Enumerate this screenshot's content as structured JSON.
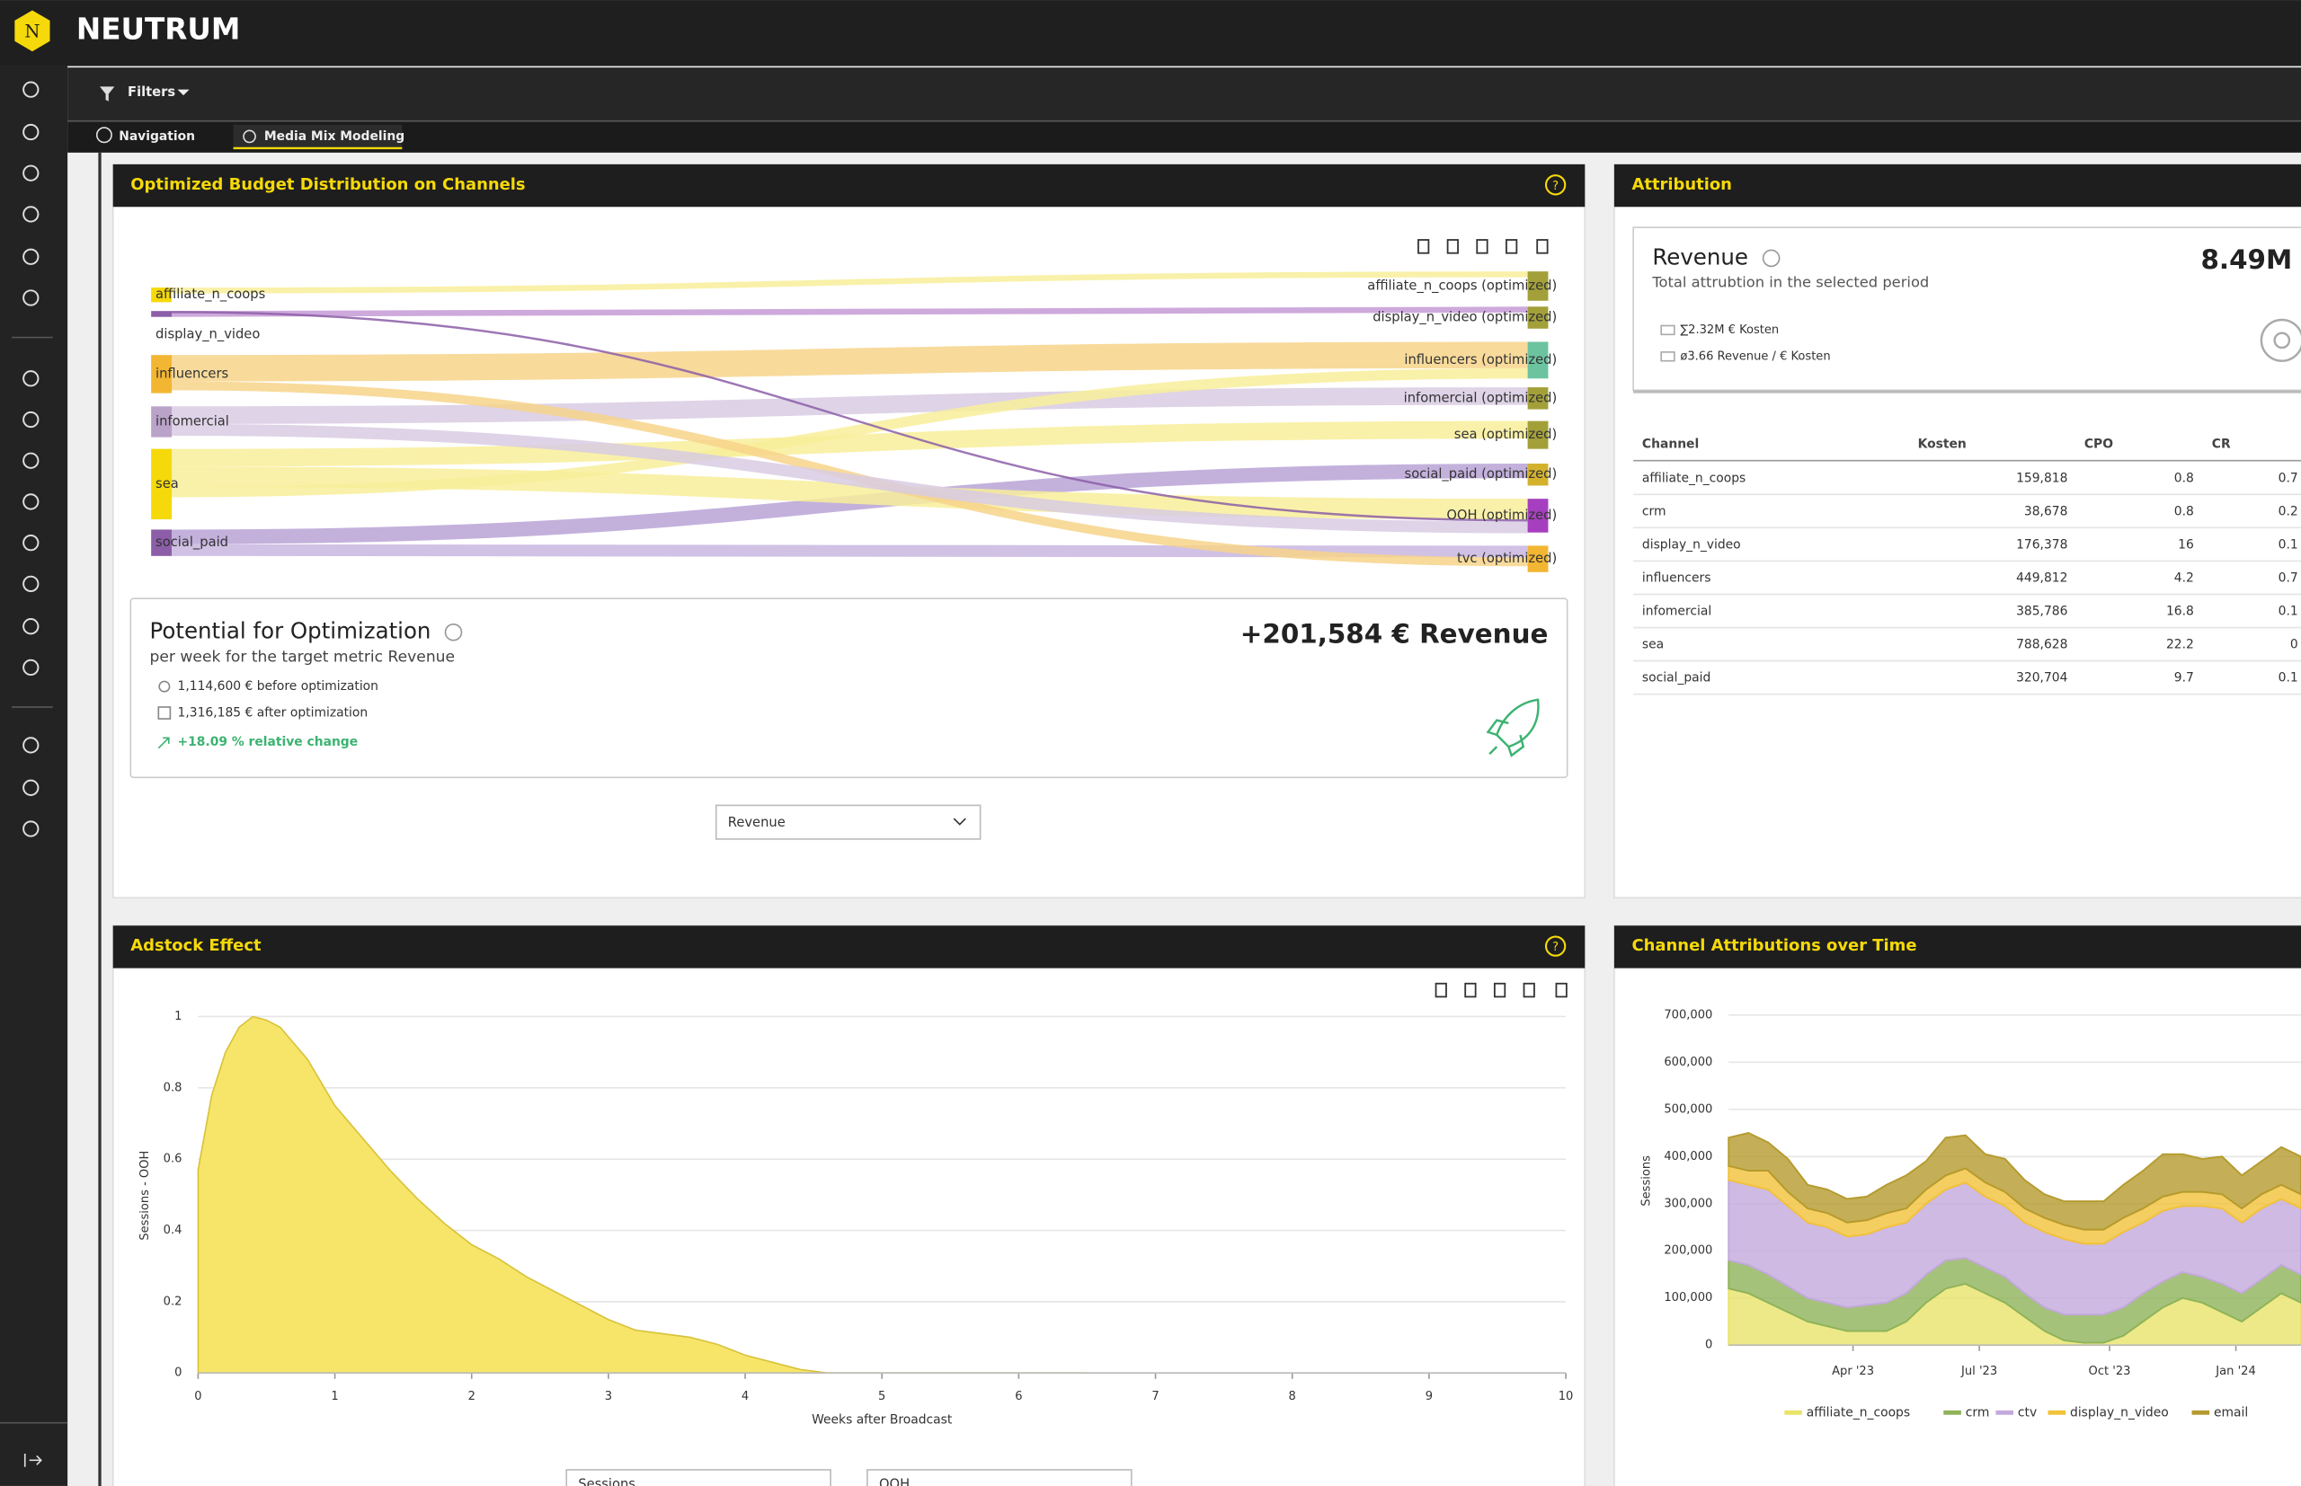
{
  "header": {
    "logo": "N",
    "brand": "NEUTRUM"
  },
  "toolbar": {
    "filters": "Filters"
  },
  "tabs": [
    "Navigation",
    "Media Mix Modeling"
  ],
  "budget_panel": {
    "title": "Optimized Budget Distribution on Channels",
    "sources": [
      "affiliate_n_coops",
      "display_n_video",
      "influencers",
      "infomercial",
      "sea",
      "social_paid"
    ],
    "targets": [
      "affiliate_n_coops (optimized)",
      "display_n_video (optimized)",
      "influencers (optimized)",
      "infomercial (optimized)",
      "sea (optimized)",
      "social_paid (optimized)",
      "OOH (optimized)",
      "tvc (optimized)"
    ],
    "potential": {
      "title": "Potential for Optimization",
      "subtitle": "per week for the target metric Revenue",
      "headline": "+201,584 € Revenue",
      "before": "1,114,600 € before optimization",
      "after": "1,316,185 € after optimization",
      "change": "+18.09 % relative change"
    },
    "select": "Revenue"
  },
  "attribution": {
    "title": "Attribution",
    "metric": "Revenue",
    "description": "Total attrubtion in the selected period",
    "value": "8.49M",
    "costs": "∑2.32M € Kosten",
    "ratio": "ø3.66 Revenue / € Kosten",
    "table": {
      "columns": [
        "Channel",
        "Kosten",
        "CPO",
        "CR"
      ],
      "rows": [
        [
          "affiliate_n_coops",
          "159,818",
          "0.8",
          "0.7"
        ],
        [
          "crm",
          "38,678",
          "0.8",
          "0.2"
        ],
        [
          "display_n_video",
          "176,378",
          "16",
          "0.1"
        ],
        [
          "influencers",
          "449,812",
          "4.2",
          "0.7"
        ],
        [
          "infomercial",
          "385,786",
          "16.8",
          "0.1"
        ],
        [
          "sea",
          "788,628",
          "22.2",
          "0"
        ],
        [
          "social_paid",
          "320,704",
          "9.7",
          "0.1"
        ]
      ]
    }
  },
  "adstock": {
    "title": "Adstock Effect",
    "type": "area",
    "y_label": "Sessions - OOH",
    "x_label": "Weeks after Broadcast",
    "x": [
      0,
      0.1,
      0.2,
      0.3,
      0.4,
      0.5,
      0.6,
      0.8,
      1,
      1.2,
      1.4,
      1.6,
      1.8,
      2,
      2.2,
      2.4,
      2.6,
      2.8,
      3,
      3.2,
      3.4,
      3.6,
      3.8,
      4,
      4.2,
      4.4,
      4.6,
      5,
      6,
      6.5
    ],
    "values": [
      0.57,
      0.78,
      0.9,
      0.97,
      1.0,
      0.99,
      0.97,
      0.88,
      0.75,
      0.66,
      0.57,
      0.49,
      0.42,
      0.36,
      0.32,
      0.27,
      0.23,
      0.19,
      0.15,
      0.12,
      0.11,
      0.1,
      0.08,
      0.05,
      0.03,
      0.01,
      0,
      0,
      0,
      0
    ],
    "color": "#f7e56a",
    "xlim": [
      0,
      10
    ],
    "ylim": [
      0,
      1
    ],
    "xticks": [
      0,
      1,
      2,
      3,
      4,
      5,
      6,
      7,
      8,
      9,
      10
    ],
    "yticks": [
      0,
      0.2,
      0.4,
      0.6,
      0.8,
      1
    ],
    "selects": [
      "Sessions",
      "OOH"
    ]
  },
  "channel_attributions": {
    "title": "Channel Attributions over Time",
    "type": "stacked-area",
    "y_label": "Sessions",
    "ylim": [
      0,
      700000
    ],
    "yticks": [
      0,
      {
        "value": 100000,
        "label": "100,000"
      },
      {
        "value": 200000,
        "label": "200,000"
      },
      {
        "value": 300000,
        "label": "300,000"
      },
      {
        "value": 400000,
        "label": "400,000"
      },
      {
        "value": 500000,
        "label": "500,000"
      },
      {
        "value": 600000,
        "label": "600,000"
      },
      {
        "value": 700000,
        "label": "700,000"
      }
    ],
    "xlim": [
      0,
      29
    ],
    "xticks": [
      {
        "value": 6.3,
        "label": "Apr '23"
      },
      {
        "value": 12.7,
        "label": "Jul '23"
      },
      {
        "value": 19.3,
        "label": "Oct '23"
      },
      {
        "value": 25.7,
        "label": "Jan '24"
      }
    ],
    "series": [
      {
        "name": "affiliate_n_coops",
        "color": "#e9e36a",
        "values": [
          120000,
          110000,
          90000,
          70000,
          50000,
          40000,
          30000,
          30000,
          30000,
          50000,
          90000,
          120000,
          130000,
          110000,
          90000,
          60000,
          30000,
          10000,
          5000,
          5000,
          20000,
          50000,
          80000,
          100000,
          90000,
          70000,
          50000,
          80000,
          110000,
          90000
        ]
      },
      {
        "name": "crm",
        "color": "#8fb35a",
        "values": [
          60000,
          60000,
          60000,
          55000,
          50000,
          50000,
          50000,
          55000,
          60000,
          60000,
          60000,
          60000,
          55000,
          55000,
          55000,
          50000,
          50000,
          55000,
          60000,
          60000,
          60000,
          60000,
          55000,
          55000,
          55000,
          60000,
          60000,
          60000,
          60000,
          60000
        ]
      },
      {
        "name": "ctv",
        "color": "#c3a9dc",
        "values": [
          170000,
          170000,
          180000,
          170000,
          160000,
          160000,
          150000,
          150000,
          160000,
          150000,
          150000,
          150000,
          160000,
          150000,
          150000,
          150000,
          160000,
          160000,
          150000,
          150000,
          160000,
          150000,
          150000,
          140000,
          150000,
          160000,
          150000,
          150000,
          140000,
          140000
        ]
      },
      {
        "name": "display_n_video",
        "color": "#f2c23a",
        "values": [
          30000,
          30000,
          40000,
          30000,
          30000,
          30000,
          30000,
          30000,
          30000,
          30000,
          30000,
          30000,
          30000,
          30000,
          30000,
          30000,
          30000,
          30000,
          30000,
          30000,
          30000,
          30000,
          30000,
          30000,
          30000,
          30000,
          30000,
          30000,
          30000,
          30000
        ]
      },
      {
        "name": "email",
        "color": "#b59b2e",
        "values": [
          60000,
          80000,
          60000,
          70000,
          50000,
          50000,
          50000,
          50000,
          60000,
          70000,
          60000,
          80000,
          70000,
          60000,
          70000,
          60000,
          50000,
          50000,
          60000,
          60000,
          70000,
          80000,
          90000,
          80000,
          70000,
          80000,
          70000,
          70000,
          80000,
          80000
        ]
      }
    ]
  }
}
